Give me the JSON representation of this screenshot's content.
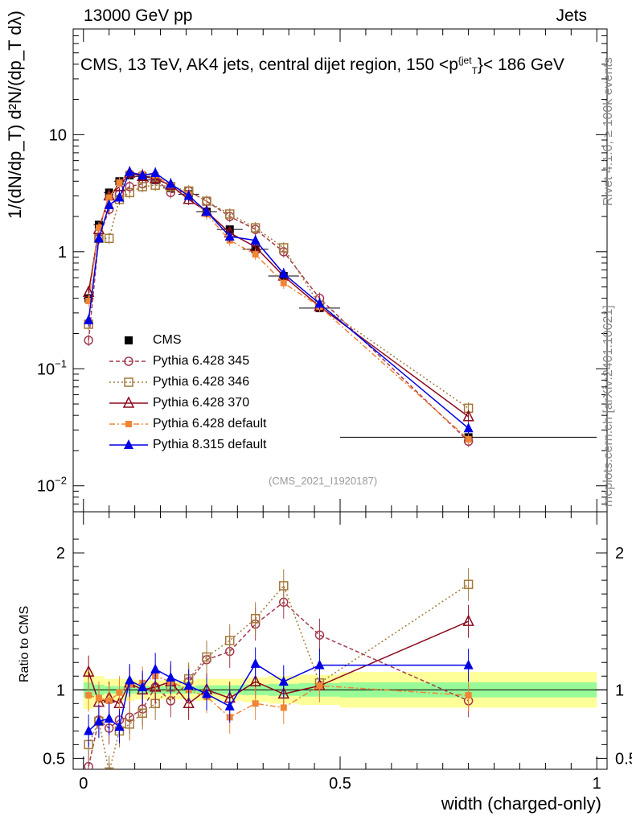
{
  "header": {
    "left": "13000 GeV pp",
    "right": "Jets",
    "side_right_top": "Rivet 4.1.0, ≥ 100k events",
    "side_right_bottom": "mcplots.cern.ch [arXiv:2401.10621]"
  },
  "chart_data": [
    {
      "panel": "main",
      "type": "scatter",
      "title": "CMS, 13 TeV, AK4 jets, central dijet region, 150 < p_T^{jet} < 186 GeV",
      "title_parts": {
        "pre": "CMS, 13 TeV, AK4 jets, central dijet region, 150 <p",
        "sup": "{jet",
        "sub": "T",
        "post": "}< 186 GeV"
      },
      "ylabel": "1/(dN/dp_T) d²N/(dp_T dλ)",
      "xlabel": "width (charged-only)",
      "yscale": "log",
      "xlim": [
        -0.02,
        1.02
      ],
      "ylim": [
        0.006,
        80
      ],
      "y_tick_labels": [
        "10^-2",
        "10^-1",
        "1",
        "10"
      ],
      "x": [
        0.01,
        0.03,
        0.05,
        0.07,
        0.09,
        0.115,
        0.14,
        0.17,
        0.205,
        0.24,
        0.285,
        0.335,
        0.39,
        0.46,
        0.75
      ],
      "x_err": [
        0.01,
        0.01,
        0.01,
        0.01,
        0.01,
        0.015,
        0.015,
        0.015,
        0.02,
        0.02,
        0.025,
        0.025,
        0.03,
        0.04,
        0.25
      ],
      "series": [
        {
          "name": "CMS",
          "values": [
            0.4,
            1.7,
            3.2,
            4.0,
            4.5,
            4.4,
            4.1,
            3.5,
            3.1,
            2.2,
            1.55,
            1.05,
            0.62,
            0.33,
            0.026
          ]
        },
        {
          "name": "Pythia 6.428 345",
          "values": [
            0.175,
            1.3,
            2.3,
            3.1,
            3.6,
            3.8,
            4.2,
            3.2,
            3.3,
            2.7,
            2.0,
            1.55,
            1.0,
            0.4,
            0.024
          ]
        },
        {
          "name": "Pythia 6.428 346",
          "values": [
            0.24,
            1.3,
            1.3,
            2.8,
            3.2,
            3.6,
            3.7,
            3.6,
            3.3,
            2.7,
            2.1,
            1.6,
            1.08,
            0.35,
            0.046
          ]
        },
        {
          "name": "Pythia 6.428 370",
          "values": [
            0.45,
            1.55,
            3.0,
            3.6,
            4.7,
            4.4,
            4.2,
            3.7,
            2.8,
            2.2,
            1.45,
            1.1,
            0.62,
            0.34,
            0.039
          ]
        },
        {
          "name": "Pythia 6.428 default",
          "values": [
            0.38,
            1.6,
            2.9,
            3.9,
            4.7,
            4.6,
            4.5,
            3.7,
            3.1,
            2.1,
            1.25,
            0.95,
            0.54,
            0.34,
            0.025
          ]
        },
        {
          "name": "Pythia 8.315 default",
          "values": [
            0.26,
            1.3,
            2.5,
            2.9,
            4.8,
            4.5,
            4.7,
            3.8,
            3.0,
            2.2,
            1.35,
            1.25,
            0.65,
            0.36,
            0.031
          ]
        }
      ],
      "legend": [
        "CMS",
        "Pythia 6.428 345",
        "Pythia 6.428 346",
        "Pythia 6.428 370",
        "Pythia 6.428 default",
        "Pythia 8.315 default"
      ],
      "legend_position": "bottom-left",
      "annotation": "(CMS_2021_I1920187)"
    },
    {
      "panel": "ratio",
      "type": "line",
      "ylabel": "Ratio to CMS",
      "xlabel": "width (charged-only)",
      "xlim": [
        -0.02,
        1.02
      ],
      "ylim": [
        0.42,
        2.3
      ],
      "y_tick_labels": [
        "0.5",
        "1",
        "2"
      ],
      "x_tick_labels": [
        "0",
        "0.5",
        "1"
      ],
      "band_green": [
        {
          "x0": 0.0,
          "x1": 0.02,
          "half": 0.1
        },
        {
          "x0": 0.02,
          "x1": 0.04,
          "half": 0.07
        },
        {
          "x0": 0.04,
          "x1": 0.1,
          "half": 0.05
        },
        {
          "x0": 0.1,
          "x1": 0.22,
          "half": 0.05
        },
        {
          "x0": 0.22,
          "x1": 0.31,
          "half": 0.06
        },
        {
          "x0": 0.31,
          "x1": 0.36,
          "half": 0.07
        },
        {
          "x0": 0.36,
          "x1": 0.42,
          "half": 0.08
        },
        {
          "x0": 0.42,
          "x1": 0.5,
          "half": 0.09
        },
        {
          "x0": 0.5,
          "x1": 1.0,
          "half": 0.1
        }
      ],
      "band_yellow": [
        {
          "x0": 0.0,
          "x1": 0.02,
          "half": 0.14
        },
        {
          "x0": 0.02,
          "x1": 0.04,
          "half": 0.1
        },
        {
          "x0": 0.04,
          "x1": 0.1,
          "half": 0.08
        },
        {
          "x0": 0.1,
          "x1": 0.22,
          "half": 0.07
        },
        {
          "x0": 0.22,
          "x1": 0.31,
          "half": 0.08
        },
        {
          "x0": 0.31,
          "x1": 0.36,
          "half": 0.09
        },
        {
          "x0": 0.36,
          "x1": 0.42,
          "half": 0.1
        },
        {
          "x0": 0.42,
          "x1": 0.5,
          "half": 0.11
        },
        {
          "x0": 0.5,
          "x1": 1.0,
          "half": 0.13
        }
      ],
      "series": [
        {
          "name": "Pythia 6.428 345",
          "values": [
            0.44,
            0.78,
            0.72,
            0.78,
            0.8,
            0.86,
            1.02,
            0.92,
            1.06,
            1.22,
            1.28,
            1.48,
            1.64,
            1.4,
            0.92
          ]
        },
        {
          "name": "Pythia 6.428 346",
          "values": [
            0.6,
            0.77,
            0.4,
            0.7,
            0.75,
            0.83,
            0.9,
            1.02,
            1.08,
            1.24,
            1.36,
            1.52,
            1.76,
            1.05,
            1.77
          ]
        },
        {
          "name": "Pythia 6.428 370",
          "values": [
            1.13,
            0.91,
            0.94,
            0.9,
            1.05,
            1.0,
            1.02,
            1.06,
            0.9,
            1.0,
            0.94,
            1.06,
            0.97,
            1.03,
            1.5
          ]
        },
        {
          "name": "Pythia 6.428 default",
          "values": [
            0.96,
            0.94,
            0.92,
            0.98,
            1.04,
            1.05,
            1.1,
            1.06,
            1.0,
            0.95,
            0.8,
            0.9,
            0.87,
            1.03,
            0.96
          ]
        },
        {
          "name": "Pythia 8.315 default",
          "values": [
            0.7,
            0.77,
            0.79,
            0.73,
            1.07,
            1.02,
            1.15,
            1.09,
            1.03,
            0.97,
            0.88,
            1.19,
            1.06,
            1.18,
            1.18
          ]
        }
      ]
    }
  ],
  "colors": {
    "CMS": "#000000",
    "Pythia 6.428 345": "#a33b4f",
    "Pythia 6.428 346": "#a3793b",
    "Pythia 6.428 370": "#8b0b1e",
    "Pythia 6.428 default": "#f08535",
    "Pythia 8.315 default": "#0000e6",
    "band_green": "#98fb98",
    "band_yellow": "#ffff99"
  }
}
